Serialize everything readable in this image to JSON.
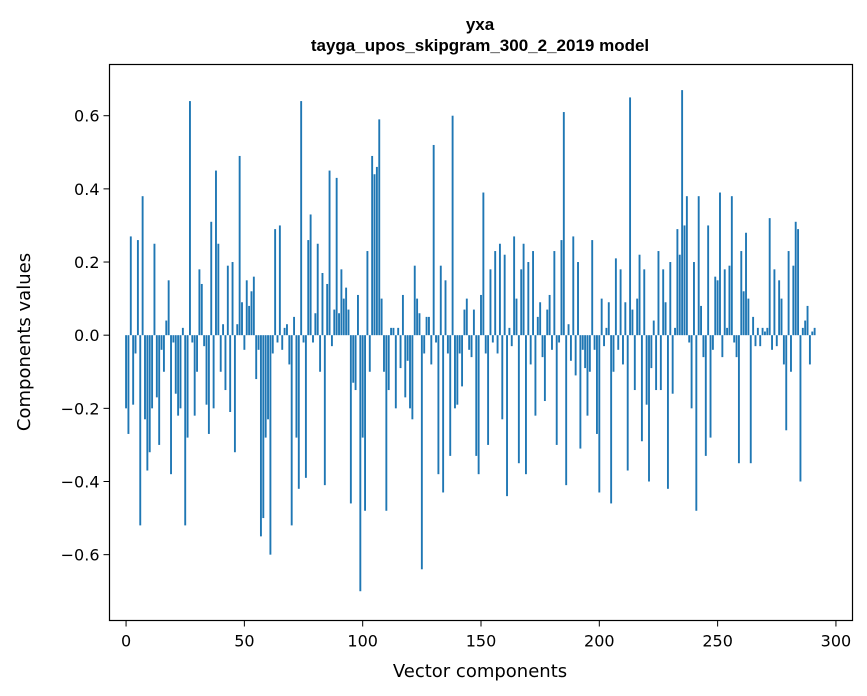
{
  "chart_data": {
    "type": "bar",
    "title": "yxa",
    "subtitle": "tayga_upos_skipgram_300_2_2019 model",
    "xlabel": "Vector components",
    "ylabel": "Components values",
    "xlim": [
      -7,
      307
    ],
    "ylim": [
      -0.78,
      0.74
    ],
    "xticks": [
      0,
      50,
      100,
      150,
      200,
      250,
      300
    ],
    "yticks": [
      -0.6,
      -0.4,
      -0.2,
      0.0,
      0.2,
      0.4,
      0.6
    ],
    "ytick_labels": [
      "−0.6",
      "−0.4",
      "−0.2",
      "0.0",
      "0.2",
      "0.4",
      "0.6"
    ],
    "bar_color": "#1f77b4",
    "values": [
      -0.2,
      -0.27,
      0.27,
      -0.19,
      -0.05,
      0.26,
      -0.52,
      0.38,
      -0.23,
      -0.37,
      -0.32,
      -0.2,
      0.25,
      -0.17,
      -0.3,
      -0.04,
      -0.1,
      0.04,
      0.15,
      -0.38,
      -0.02,
      -0.16,
      -0.22,
      -0.2,
      0.02,
      -0.52,
      -0.28,
      0.64,
      -0.02,
      -0.22,
      -0.1,
      0.18,
      0.14,
      -0.03,
      -0.19,
      -0.27,
      0.31,
      -0.2,
      0.45,
      0.25,
      -0.1,
      0.03,
      -0.15,
      0.19,
      -0.21,
      0.2,
      -0.32,
      0.03,
      0.49,
      0.09,
      -0.04,
      0.15,
      0.08,
      0.12,
      0.16,
      -0.12,
      -0.04,
      -0.55,
      -0.5,
      -0.28,
      -0.23,
      -0.6,
      -0.05,
      0.29,
      -0.02,
      0.3,
      -0.04,
      0.02,
      0.03,
      -0.08,
      -0.52,
      0.05,
      -0.28,
      -0.42,
      0.64,
      -0.02,
      -0.39,
      0.26,
      0.33,
      -0.02,
      0.06,
      0.25,
      -0.1,
      0.17,
      -0.41,
      0.14,
      0.45,
      -0.03,
      0.07,
      0.43,
      0.06,
      0.18,
      0.1,
      0.13,
      0.07,
      -0.46,
      -0.13,
      -0.15,
      0.11,
      -0.7,
      -0.28,
      -0.48,
      0.23,
      -0.1,
      0.49,
      0.44,
      0.46,
      0.59,
      0.1,
      -0.1,
      -0.48,
      -0.15,
      0.02,
      0.02,
      -0.2,
      0.02,
      -0.09,
      0.11,
      -0.17,
      -0.07,
      -0.2,
      -0.23,
      0.19,
      0.1,
      0.06,
      -0.64,
      -0.05,
      0.05,
      0.05,
      -0.08,
      0.52,
      -0.02,
      -0.38,
      0.19,
      -0.43,
      0.15,
      -0.05,
      -0.33,
      0.6,
      -0.2,
      -0.19,
      -0.05,
      -0.14,
      0.07,
      0.1,
      -0.04,
      -0.06,
      0.07,
      -0.33,
      -0.38,
      0.11,
      0.39,
      -0.05,
      -0.3,
      0.18,
      -0.02,
      0.23,
      -0.05,
      0.25,
      -0.23,
      0.22,
      -0.44,
      0.02,
      -0.03,
      0.27,
      0.1,
      -0.35,
      0.18,
      0.25,
      -0.38,
      0.2,
      -0.08,
      0.23,
      -0.22,
      0.05,
      0.09,
      -0.06,
      -0.18,
      0.07,
      0.11,
      -0.04,
      0.23,
      -0.3,
      -0.02,
      0.26,
      0.61,
      -0.41,
      0.03,
      -0.07,
      0.27,
      -0.11,
      0.2,
      -0.31,
      -0.04,
      -0.09,
      -0.22,
      -0.1,
      0.26,
      -0.04,
      -0.27,
      -0.43,
      0.1,
      -0.03,
      0.02,
      0.09,
      -0.46,
      -0.1,
      0.21,
      -0.04,
      0.18,
      -0.08,
      0.09,
      -0.37,
      0.65,
      0.07,
      -0.15,
      0.1,
      0.22,
      -0.29,
      0.18,
      -0.19,
      -0.4,
      -0.09,
      0.04,
      -0.15,
      0.23,
      -0.15,
      0.18,
      0.09,
      -0.42,
      0.2,
      -0.16,
      0.02,
      0.29,
      0.22,
      0.67,
      0.3,
      0.38,
      -0.02,
      -0.2,
      0.2,
      -0.48,
      0.38,
      0.08,
      -0.06,
      -0.33,
      0.3,
      -0.28,
      -0.04,
      0.16,
      0.15,
      0.39,
      -0.06,
      0.18,
      0.02,
      0.19,
      0.38,
      -0.02,
      -0.06,
      -0.35,
      0.23,
      0.12,
      0.28,
      0.1,
      -0.35,
      0.05,
      -0.03,
      0.02,
      -0.03,
      0.02,
      0.01,
      0.02,
      0.32,
      -0.04,
      0.18,
      -0.03,
      0.15,
      0.1,
      -0.08,
      -0.26,
      0.23,
      -0.1,
      0.19,
      0.31,
      0.29,
      -0.4,
      0.02,
      0.04,
      0.08,
      -0.08,
      0.01,
      0.02
    ]
  }
}
